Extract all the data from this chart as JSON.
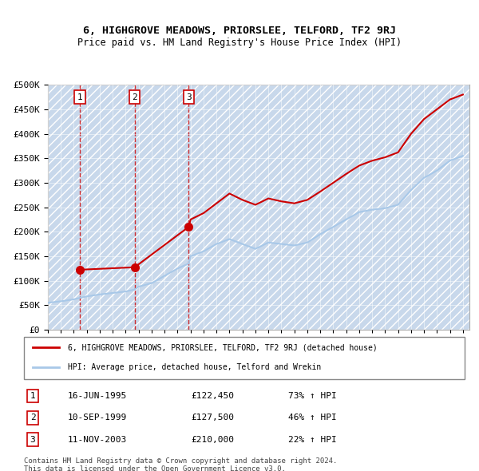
{
  "title": "6, HIGHGROVE MEADOWS, PRIORSLEE, TELFORD, TF2 9RJ",
  "subtitle": "Price paid vs. HM Land Registry's House Price Index (HPI)",
  "legend_entry1": "6, HIGHGROVE MEADOWS, PRIORSLEE, TELFORD, TF2 9RJ (detached house)",
  "legend_entry2": "HPI: Average price, detached house, Telford and Wrekin",
  "footer1": "Contains HM Land Registry data © Crown copyright and database right 2024.",
  "footer2": "This data is licensed under the Open Government Licence v3.0.",
  "transactions": [
    {
      "num": 1,
      "date": "16-JUN-1995",
      "price": 122450,
      "hpi_pct": "73% ↑ HPI",
      "year": 1995.46
    },
    {
      "num": 2,
      "date": "10-SEP-1999",
      "price": 127500,
      "hpi_pct": "46% ↑ HPI",
      "year": 1999.69
    },
    {
      "num": 3,
      "date": "11-NOV-2003",
      "price": 210000,
      "hpi_pct": "22% ↑ HPI",
      "year": 2003.86
    }
  ],
  "hpi_color": "#a8c8e8",
  "price_color": "#cc0000",
  "dashed_color": "#cc0000",
  "background_main": "#dce9f5",
  "background_hatch": "#c8d8eb",
  "ylim": [
    0,
    500000
  ],
  "ytick_step": 50000,
  "xlim_start": 1993,
  "xlim_end": 2025.5,
  "hpi_data_x": [
    1993,
    1994,
    1995,
    1995.46,
    1996,
    1997,
    1998,
    1999,
    1999.69,
    2000,
    2001,
    2002,
    2003,
    2003.86,
    2004,
    2005,
    2006,
    2007,
    2008,
    2009,
    2010,
    2011,
    2012,
    2013,
    2014,
    2015,
    2016,
    2017,
    2018,
    2019,
    2020,
    2021,
    2022,
    2023,
    2024,
    2025
  ],
  "hpi_data_y": [
    55000,
    58000,
    62000,
    65000,
    68000,
    72000,
    75000,
    78000,
    82000,
    88000,
    95000,
    110000,
    125000,
    135000,
    150000,
    160000,
    175000,
    185000,
    175000,
    165000,
    178000,
    175000,
    172000,
    178000,
    195000,
    210000,
    225000,
    240000,
    245000,
    248000,
    255000,
    285000,
    310000,
    325000,
    345000,
    355000
  ],
  "price_data_x": [
    1995.46,
    1999.69,
    2003.86,
    2004,
    2005,
    2006,
    2007,
    2008,
    2009,
    2010,
    2011,
    2012,
    2013,
    2014,
    2015,
    2016,
    2017,
    2018,
    2019,
    2020,
    2021,
    2022,
    2023,
    2024,
    2025
  ],
  "price_data_y": [
    122450,
    127500,
    210000,
    225000,
    238000,
    258000,
    278000,
    265000,
    255000,
    268000,
    262000,
    258000,
    265000,
    282000,
    300000,
    318000,
    335000,
    345000,
    352000,
    362000,
    400000,
    430000,
    450000,
    470000,
    480000
  ]
}
